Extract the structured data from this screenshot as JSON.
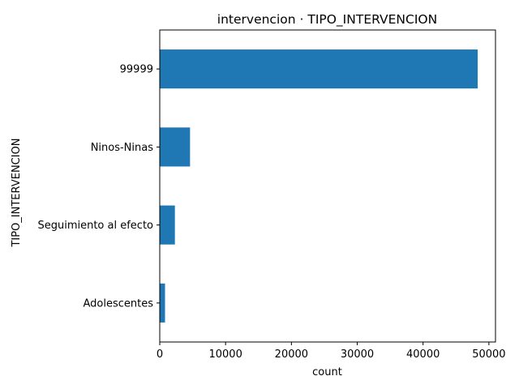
{
  "chart_data": {
    "type": "bar",
    "orientation": "horizontal",
    "title": "intervencion · TIPO_INTERVENCION",
    "xlabel": "count",
    "ylabel": "TIPO_INTERVENCION",
    "categories": [
      "99999",
      "Ninos-Ninas",
      "Seguimiento al efecto",
      "Adolescentes"
    ],
    "values": [
      48300,
      4600,
      2300,
      800
    ],
    "xlim": [
      0,
      51000
    ],
    "xticks": [
      0,
      10000,
      20000,
      30000,
      40000,
      50000
    ],
    "grid": false,
    "legend": "none",
    "bar_color": "#1f77b4"
  }
}
